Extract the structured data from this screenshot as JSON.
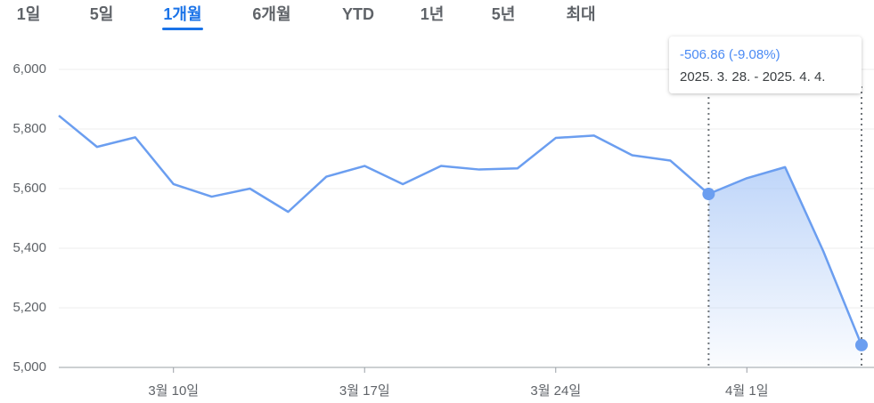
{
  "tabs": [
    "1일",
    "5일",
    "1개월",
    "6개월",
    "YTD",
    "1년",
    "5년",
    "최대"
  ],
  "selected_tab": 2,
  "chart_data": {
    "type": "line",
    "categories": [
      null,
      null,
      null,
      "3월 10일",
      null,
      null,
      null,
      null,
      "3월 17일",
      null,
      null,
      null,
      null,
      "3월 24일",
      null,
      null,
      null,
      null,
      "4월 1일",
      null,
      null,
      null
    ],
    "series": [
      {
        "color": "#6b9ef0",
        "values": [
          5845,
          5740,
          5772,
          5615,
          5573,
          5600,
          5522,
          5640,
          5676,
          5615,
          5676,
          5664,
          5668,
          5770,
          5778,
          5712,
          5694,
          5582,
          5635,
          5672,
          5390,
          5075
        ]
      }
    ],
    "ylim": [
      5000,
      6000
    ],
    "yticks": [
      {
        "value": 5000,
        "label": "5,000"
      },
      {
        "value": 5200,
        "label": "5,200"
      },
      {
        "value": 5400,
        "label": "5,400"
      },
      {
        "value": 5600,
        "label": "5,600"
      },
      {
        "value": 5800,
        "label": "5,800"
      },
      {
        "value": 6000,
        "label": "6,000"
      }
    ],
    "grid": true,
    "highlight": [
      17,
      21
    ],
    "tooltip": {
      "change": "-506.86 (-9.08%)",
      "range": "2025. 3. 28. - 2025. 4. 4."
    }
  }
}
